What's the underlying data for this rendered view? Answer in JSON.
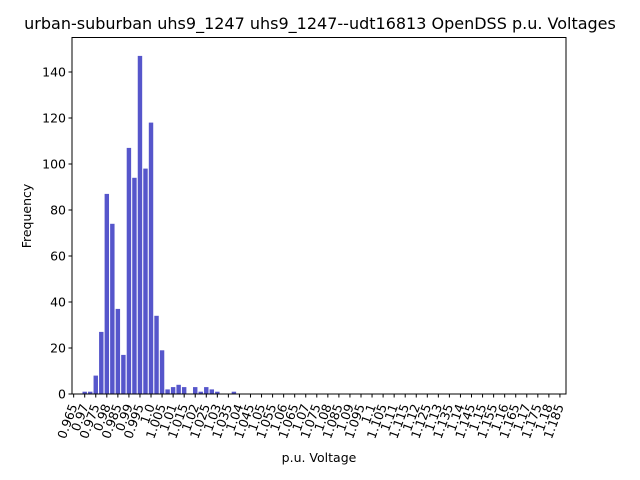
{
  "chart_data": {
    "type": "bar",
    "title": "urban-suburban uhs9_1247 uhs9_1247--udt16813 OpenDSS p.u. Voltages",
    "xlabel": "p.u. Voltage",
    "ylabel": "Frequency",
    "ylim": [
      0,
      155
    ],
    "yticks": [
      0,
      20,
      40,
      60,
      80,
      100,
      120,
      140
    ],
    "grid": false,
    "legend": "none",
    "bar_color": "#4d4dc8",
    "categories": [
      "0.965",
      "0.97",
      "0.975",
      "0.98",
      "0.985",
      "0.99",
      "0.995",
      "1.0",
      "1.005",
      "1.01",
      "1.015",
      "1.02",
      "1.025",
      "1.03",
      "1.035",
      "1.04",
      "1.045",
      "1.05",
      "1.055",
      "1.06",
      "1.065",
      "1.07",
      "1.075",
      "1.08",
      "1.085",
      "1.09",
      "1.095",
      "1.1",
      "1.105",
      "1.11",
      "1.115",
      "1.12",
      "1.125",
      "1.13",
      "1.135",
      "1.14",
      "1.145",
      "1.15",
      "1.155",
      "1.16",
      "1.165",
      "1.17",
      "1.175",
      "1.18",
      "1.185"
    ],
    "x_step": 0.0025,
    "bins": [
      {
        "x": 0.965,
        "value": 0
      },
      {
        "x": 0.9675,
        "value": 0
      },
      {
        "x": 0.97,
        "value": 1
      },
      {
        "x": 0.9725,
        "value": 1
      },
      {
        "x": 0.975,
        "value": 8
      },
      {
        "x": 0.9775,
        "value": 27
      },
      {
        "x": 0.98,
        "value": 87
      },
      {
        "x": 0.9825,
        "value": 74
      },
      {
        "x": 0.985,
        "value": 37
      },
      {
        "x": 0.9875,
        "value": 17
      },
      {
        "x": 0.99,
        "value": 107
      },
      {
        "x": 0.9925,
        "value": 94
      },
      {
        "x": 0.995,
        "value": 147
      },
      {
        "x": 0.9975,
        "value": 98
      },
      {
        "x": 1.0,
        "value": 118
      },
      {
        "x": 1.0025,
        "value": 34
      },
      {
        "x": 1.005,
        "value": 19
      },
      {
        "x": 1.0075,
        "value": 2
      },
      {
        "x": 1.01,
        "value": 3
      },
      {
        "x": 1.0125,
        "value": 4
      },
      {
        "x": 1.015,
        "value": 3
      },
      {
        "x": 1.0175,
        "value": 0
      },
      {
        "x": 1.02,
        "value": 3
      },
      {
        "x": 1.0225,
        "value": 1
      },
      {
        "x": 1.025,
        "value": 3
      },
      {
        "x": 1.0275,
        "value": 2
      },
      {
        "x": 1.03,
        "value": 1
      },
      {
        "x": 1.0325,
        "value": 0
      },
      {
        "x": 1.035,
        "value": 0
      },
      {
        "x": 1.0375,
        "value": 1
      }
    ]
  }
}
